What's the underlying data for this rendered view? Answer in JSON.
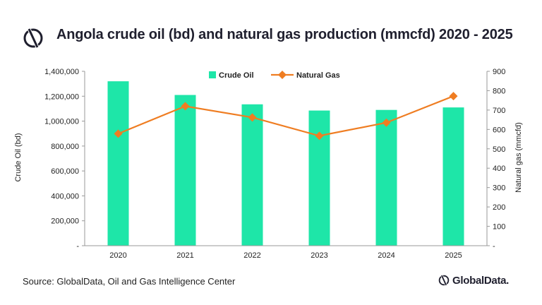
{
  "header": {
    "title": "Angola crude oil (bd) and natural gas production (mmcfd) 2020 - 2025"
  },
  "footer": {
    "source": "Source: GlobalData, Oil and Gas Intelligence Center",
    "brand": "GlobalData."
  },
  "icons": {
    "title_logo": "globaldata-logo-icon",
    "brand_logo": "globaldata-logo-icon"
  },
  "colors": {
    "bars": "#1ee6a8",
    "line": "#ef7d22",
    "axes": "#999999",
    "title": "#1f1f2e"
  },
  "chart_data": {
    "type": "bar",
    "title": "Angola crude oil (bd) and natural gas production (mmcfd) 2020 - 2025",
    "categories": [
      "2020",
      "2021",
      "2022",
      "2023",
      "2024",
      "2025"
    ],
    "series": [
      {
        "name": "Crude Oil",
        "type": "bar",
        "axis": "left",
        "values": [
          1320000,
          1210000,
          1135000,
          1085000,
          1090000,
          1110000
        ]
      },
      {
        "name": "Natural Gas",
        "type": "line",
        "axis": "right",
        "values": [
          578,
          720,
          662,
          567,
          635,
          772
        ]
      }
    ],
    "ylabel": "Crude Oil (bd)",
    "ylabel_right": "Natural gas (mmcfd)",
    "ylim": [
      0,
      1400000
    ],
    "ylim_right": [
      0,
      900
    ],
    "yticks": [
      "-",
      "200,000",
      "400,000",
      "600,000",
      "800,000",
      "1,000,000",
      "1,200,000",
      "1,400,000"
    ],
    "yticks_right": [
      "-",
      "100",
      "200",
      "300",
      "400",
      "500",
      "600",
      "700",
      "800",
      "900"
    ],
    "grid": false,
    "legend_position": "top-center"
  }
}
